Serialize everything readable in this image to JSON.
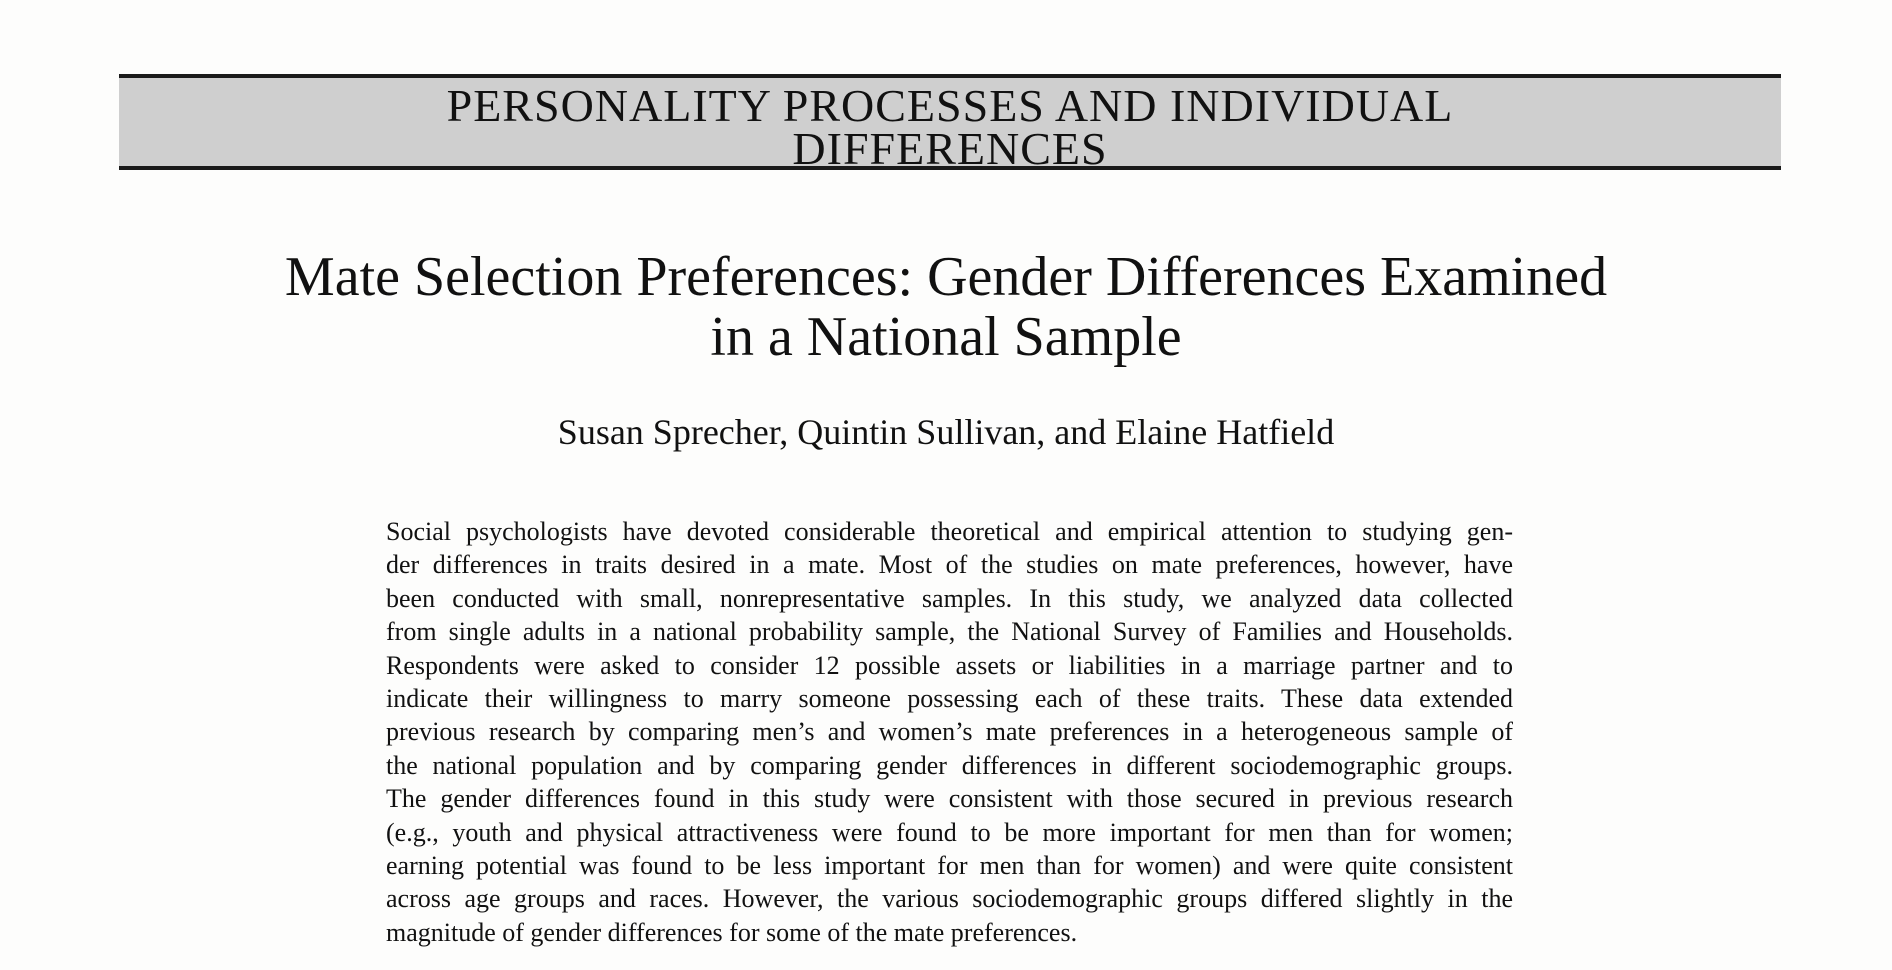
{
  "section_banner": {
    "line1": "PERSONALITY PROCESSES AND INDIVIDUAL",
    "line2": "DIFFERENCES"
  },
  "article": {
    "title_line1": "Mate Selection Preferences: Gender Differences Examined",
    "title_line2": "in a National Sample",
    "authors": "Susan Sprecher, Quintin Sullivan, and Elaine Hatfield"
  },
  "abstract": {
    "lines": [
      "Social psychologists have devoted considerable theoretical and empirical attention to studying gen-",
      "der differences in traits desired in a mate. Most of the studies on mate preferences, however, have",
      "been conducted with small, nonrepresentative samples. In this study, we analyzed data collected",
      "from single adults in a national probability sample, the National Survey of Families and Households.",
      "Respondents were asked to consider 12 possible assets or liabilities in a marriage partner and to",
      "indicate their willingness to marry someone possessing each of these traits. These data extended",
      "previous research by comparing men’s and women’s mate preferences in a heterogeneous sample of",
      "the national population and by comparing gender differences in different sociodemographic groups.",
      "The gender differences found in this study were consistent with those secured in previous research",
      "(e.g., youth and physical attractiveness were found to be more important for men than for women;",
      "earning potential was found to be less important for men than for women) and were quite consistent",
      "across age groups and races. However, the various sociodemographic groups differed slightly in the",
      "magnitude of gender differences for some of the mate preferences."
    ]
  }
}
